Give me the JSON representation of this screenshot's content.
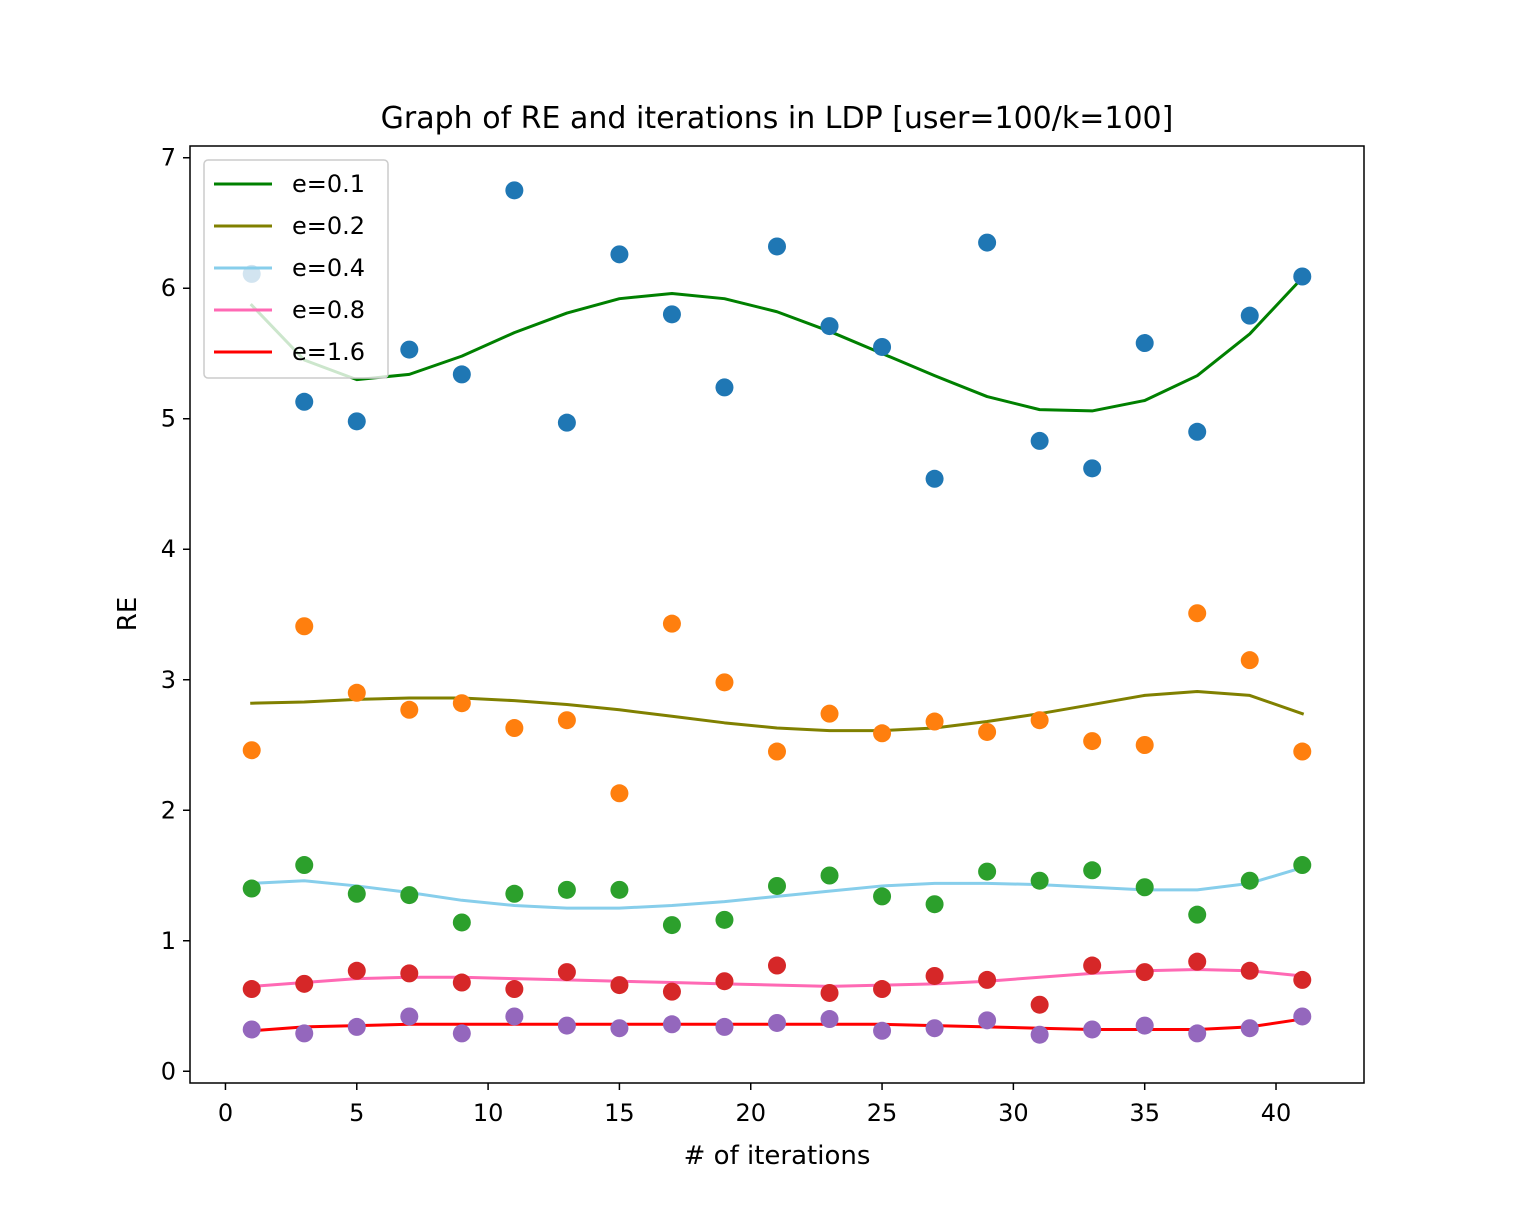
{
  "chart_data": {
    "type": "scatter",
    "title": "Graph of RE and iterations in LDP [user=100/k=100]",
    "xlabel": "# of iterations",
    "ylabel": "RE",
    "xlim": [
      -1.35,
      43.35
    ],
    "ylim": [
      -0.09,
      7.09
    ],
    "xticks": [
      0,
      5,
      10,
      15,
      20,
      25,
      30,
      35,
      40
    ],
    "yticks": [
      0,
      1,
      2,
      3,
      4,
      5,
      6,
      7
    ],
    "grid": false,
    "legend_position": "upper left",
    "x": [
      1,
      3,
      5,
      7,
      9,
      11,
      13,
      15,
      17,
      19,
      21,
      23,
      25,
      27,
      29,
      31,
      33,
      35,
      37,
      39,
      41
    ],
    "points": [
      {
        "color": "#1f77b4",
        "values": [
          6.11,
          5.13,
          4.98,
          5.53,
          5.34,
          6.75,
          4.97,
          6.26,
          5.8,
          5.24,
          6.32,
          5.71,
          5.55,
          4.54,
          6.35,
          4.83,
          4.62,
          5.58,
          4.9,
          5.79,
          6.09
        ]
      },
      {
        "color": "#ff7f0e",
        "values": [
          2.46,
          3.41,
          2.9,
          2.77,
          2.82,
          2.63,
          2.69,
          2.13,
          3.43,
          2.98,
          2.45,
          2.74,
          2.59,
          2.68,
          2.6,
          2.69,
          2.53,
          2.5,
          3.51,
          3.15,
          2.45
        ]
      },
      {
        "color": "#2ca02c",
        "values": [
          1.4,
          1.58,
          1.36,
          1.35,
          1.14,
          1.36,
          1.39,
          1.39,
          1.12,
          1.16,
          1.42,
          1.5,
          1.34,
          1.28,
          1.53,
          1.46,
          1.54,
          1.41,
          1.2,
          1.46,
          1.58
        ]
      },
      {
        "color": "#d62728",
        "values": [
          0.63,
          0.67,
          0.77,
          0.75,
          0.68,
          0.63,
          0.76,
          0.66,
          0.61,
          0.69,
          0.81,
          0.6,
          0.63,
          0.73,
          0.7,
          0.51,
          0.81,
          0.76,
          0.84,
          0.77,
          0.7
        ]
      },
      {
        "color": "#9467bd",
        "values": [
          0.32,
          0.29,
          0.34,
          0.42,
          0.29,
          0.42,
          0.35,
          0.33,
          0.36,
          0.34,
          0.37,
          0.4,
          0.31,
          0.33,
          0.39,
          0.28,
          0.32,
          0.35,
          0.29,
          0.33,
          0.42
        ]
      }
    ],
    "series": [
      {
        "name": "e=0.1",
        "color": "#008000",
        "values": [
          5.87,
          5.45,
          5.3,
          5.34,
          5.48,
          5.66,
          5.81,
          5.92,
          5.96,
          5.92,
          5.82,
          5.67,
          5.5,
          5.33,
          5.17,
          5.07,
          5.06,
          5.14,
          5.33,
          5.65,
          6.08
        ]
      },
      {
        "name": "e=0.2",
        "color": "#808000",
        "values": [
          2.82,
          2.83,
          2.85,
          2.86,
          2.86,
          2.84,
          2.81,
          2.77,
          2.72,
          2.67,
          2.63,
          2.61,
          2.61,
          2.63,
          2.68,
          2.74,
          2.81,
          2.88,
          2.91,
          2.88,
          2.74
        ]
      },
      {
        "name": "e=0.4",
        "color": "#87ceeb",
        "values": [
          1.44,
          1.46,
          1.42,
          1.37,
          1.31,
          1.27,
          1.25,
          1.25,
          1.27,
          1.3,
          1.34,
          1.38,
          1.42,
          1.44,
          1.44,
          1.43,
          1.41,
          1.39,
          1.39,
          1.44,
          1.56
        ]
      },
      {
        "name": "e=0.8",
        "color": "#ff69b4",
        "values": [
          0.65,
          0.68,
          0.71,
          0.72,
          0.72,
          0.71,
          0.7,
          0.69,
          0.68,
          0.67,
          0.66,
          0.65,
          0.66,
          0.67,
          0.69,
          0.72,
          0.75,
          0.77,
          0.78,
          0.77,
          0.73
        ]
      },
      {
        "name": "e=1.6",
        "color": "#ff0000",
        "values": [
          0.31,
          0.34,
          0.35,
          0.36,
          0.36,
          0.36,
          0.36,
          0.36,
          0.36,
          0.36,
          0.36,
          0.36,
          0.36,
          0.35,
          0.34,
          0.33,
          0.32,
          0.32,
          0.32,
          0.34,
          0.4
        ]
      }
    ]
  }
}
